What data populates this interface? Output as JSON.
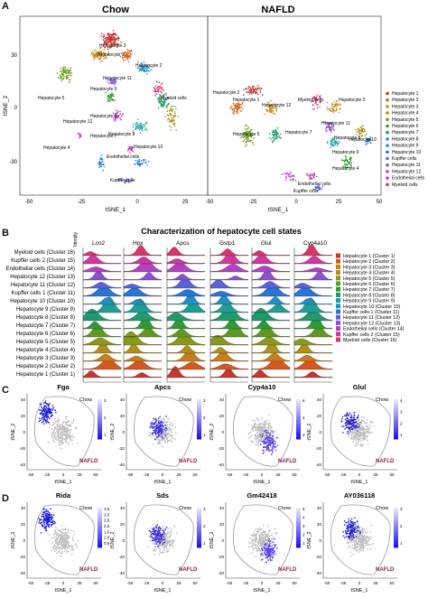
{
  "panel_letters": {
    "a": "A",
    "b": "B",
    "c": "C",
    "d": "D"
  },
  "panelA": {
    "title_left": "Chow",
    "title_right": "NAFLD",
    "xlabel": "tSNE_1",
    "ylabel": "tSNE_2",
    "left_xticks": [
      "-50",
      "-25",
      "0",
      "25"
    ],
    "right_xticks": [
      "-50",
      "-25",
      "0",
      "25",
      "50"
    ],
    "yticks": [
      "30",
      "0",
      "-30"
    ],
    "cluster_labels_left": [
      "Hepatocyte 3",
      "Hepatocyte 1",
      "Hepatocyte 11",
      "Hepatocyte 2",
      "Hepatocyte 9",
      "Hepatocyte 5",
      "Hepatocyte 6",
      "Myeloid cells",
      "Hepatocyte 7",
      "Hepatocyte 12",
      "Hepatocyte 8",
      "Hepatocyte 4",
      "Hepatocyte 10",
      "Endothelial cells",
      "Kupffer cells"
    ],
    "cluster_labels_right": [
      "Hepatocyte 2",
      "Hepatocyte 1",
      "Hepatocyte 5",
      "Hepatocyte 12",
      "Myeloid cells",
      "Hepatocyte 3",
      "Hepatocyte 7",
      "Hepatocyte 11",
      "Hepatocyte 8",
      "Hepatocyte 6",
      "Hepatocyte 4",
      "Hepatocyte10",
      "Endothelial cells",
      "Kupffer cells"
    ],
    "legend": [
      {
        "label": "Hepatocyte 1",
        "color": "#c9342f"
      },
      {
        "label": "Hepatocyte 2",
        "color": "#d9641f"
      },
      {
        "label": "Hepatocyte 3",
        "color": "#c98a1c"
      },
      {
        "label": "Hepatocyte 4",
        "color": "#a8921a"
      },
      {
        "label": "Hepatocyte 5",
        "color": "#6e9a1c"
      },
      {
        "label": "Hepatocyte 6",
        "color": "#2f9a2f"
      },
      {
        "label": "Hepatocyte 7",
        "color": "#1f9a68"
      },
      {
        "label": "Hepatocyte 8",
        "color": "#1fa09a"
      },
      {
        "label": "Hepatocyte 9",
        "color": "#1f96c4"
      },
      {
        "label": "Hepatocyte 10",
        "color": "#2a7ed8"
      },
      {
        "label": "Kupffer cells",
        "color": "#5866d8"
      },
      {
        "label": "Hepatocyte 11",
        "color": "#8a55d0"
      },
      {
        "label": "Hepatocyte 12",
        "color": "#b245c4"
      },
      {
        "label": "Endothelial cells",
        "color": "#d0389e"
      },
      {
        "label": "Myeloid cells",
        "color": "#d83568"
      }
    ]
  },
  "panelB": {
    "title": "Characterization of hepatocyte cell states",
    "identity_label": "Identity",
    "xlabel": "Expression Level",
    "genes": [
      {
        "name": "Lcn2",
        "ticks": [
          "0",
          "1",
          "2",
          "3",
          "4",
          "5"
        ]
      },
      {
        "name": "Hpx",
        "ticks": [
          "2",
          "4",
          "6"
        ]
      },
      {
        "name": "Apcs",
        "ticks": [
          "0",
          "1",
          "2",
          "3"
        ]
      },
      {
        "name": "Gstp1",
        "ticks": [
          "0",
          "2",
          "4"
        ]
      },
      {
        "name": "Glul",
        "ticks": [
          "0",
          "2",
          "4"
        ]
      },
      {
        "name": "Cyp4a10",
        "ticks": [
          "0",
          "2",
          "4",
          "6"
        ]
      }
    ],
    "identities": [
      "Myeloid cells (Cluster 16)",
      "Kupffer cells 2 (Cluster 15)",
      "Endothelial cells (Cluster 14)",
      "Hepatocyte 12 (Cluster 13)",
      "Hepatocyte 11 (Cluster 12)",
      "Kupffer cells 1 (Cluster 11)",
      "Hepatocyte 10 (Cluster 10)",
      "Hepatocyte 9 (Cluster 9)",
      "Hepatocyte 8 (Cluster 8)",
      "Hepatocyte 7 (Cluster 7)",
      "Hepatocyte 6 (Cluster 6)",
      "Hepatocyte 5 (Cluster 5)",
      "Hepatocyte 4 (Cluster 4)",
      "Hepatocyte 3 (Cluster 3)",
      "Hepatocyte 2 (Cluster 2)",
      "Hepatocyte 1 (Cluster 1)"
    ],
    "legend": [
      {
        "label": "Hepatocyte 1 (Cluster 1)",
        "color": "#c9342f"
      },
      {
        "label": "Hepatocyte 2 (Cluster 2)",
        "color": "#d6581f"
      },
      {
        "label": "Hepatocyte 3 (Cluster 3)",
        "color": "#c97c1c"
      },
      {
        "label": "Hepatocyte 4 (Cluster 4)",
        "color": "#b08f1a"
      },
      {
        "label": "Hepatocyte 5 (Cluster 5)",
        "color": "#8a981b"
      },
      {
        "label": "Hepatocyte 6 (Cluster 6)",
        "color": "#5e9a1f"
      },
      {
        "label": "Hepatocyte 7 (Cluster 7)",
        "color": "#2f9a35"
      },
      {
        "label": "Hepatocyte 8 (Cluster 8)",
        "color": "#1f9a6a"
      },
      {
        "label": "Hepatocyte 9 (Cluster 9)",
        "color": "#1f9e96"
      },
      {
        "label": "Hepatocyte 10 (Cluster 10)",
        "color": "#1f90c4"
      },
      {
        "label": "Kupffer cells 1 (Cluster 11)",
        "color": "#2a74d8"
      },
      {
        "label": "Hepatocyte 11 (Cluster 12)",
        "color": "#5b62d8"
      },
      {
        "label": "Hepatocyte 12 (Cluster 13)",
        "color": "#8a52d0"
      },
      {
        "label": "Endothelial cells (Cluster 14)",
        "color": "#b043c2"
      },
      {
        "label": "Kupffer cells 2 (Cluster 15)",
        "color": "#d0389e"
      },
      {
        "label": "Myeloid cells (Cluster 16)",
        "color": "#d83568"
      }
    ]
  },
  "panelC": {
    "genes": [
      {
        "name": "Fga",
        "ticks": [
          "3",
          "2",
          "1"
        ]
      },
      {
        "name": "Apcs",
        "ticks": [
          "3",
          "2",
          "1"
        ]
      },
      {
        "name": "Cyp4a10",
        "ticks": [
          "6",
          "4",
          "2"
        ]
      },
      {
        "name": "Glul",
        "ticks": [
          "4",
          "3",
          "2",
          "1"
        ]
      }
    ],
    "chow": "Chow",
    "nafld": "NAFLD",
    "xlabel": "tSNE_1",
    "ylabel": "tSNE_2",
    "xticks": [
      "-50",
      "-25",
      "0",
      "25",
      "50"
    ],
    "yticks": [
      "40",
      "20",
      "0",
      "-20",
      "-40"
    ]
  },
  "panelD": {
    "genes": [
      {
        "name": "Rida",
        "ticks": [
          "3.5",
          "3.0",
          "2.5",
          "2.0",
          "1.5",
          "1.0",
          "0.5"
        ]
      },
      {
        "name": "Sds",
        "ticks": [
          "3",
          "2",
          "1"
        ]
      },
      {
        "name": "Gm42418",
        "ticks": [
          "5",
          "4",
          "3",
          "2",
          "1"
        ]
      },
      {
        "name": "AY036118",
        "ticks": [
          "3",
          "2",
          "1"
        ]
      }
    ],
    "chow": "Chow",
    "nafld": "NAFLD",
    "xlabel": "tSNE_1",
    "ylabel": "tSNE_2",
    "xticks": [
      "-50",
      "-25",
      "0",
      "25",
      "50"
    ],
    "yticks": [
      "40",
      "20",
      "0",
      "-20",
      "-40"
    ]
  }
}
